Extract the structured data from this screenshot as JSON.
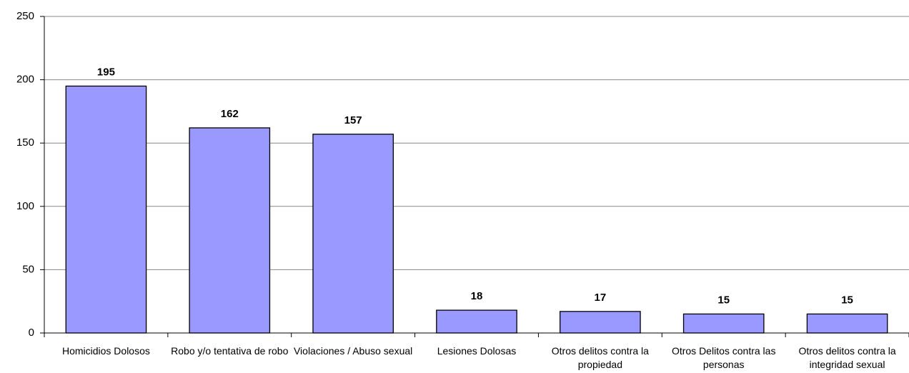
{
  "chart_data": {
    "type": "bar",
    "categories": [
      "Homicidios Dolosos",
      "Robo y/o tentativa de robo",
      "Violaciones / Abuso sexual",
      "Lesiones Dolosas",
      "Otros delitos contra la propiedad",
      "Otros Delitos contra las personas",
      "Otros delitos contra la integridad sexual"
    ],
    "values": [
      195,
      162,
      157,
      18,
      17,
      15,
      15
    ],
    "color": "#9999ff",
    "ylim": [
      0,
      250
    ],
    "yticks": [
      0,
      50,
      100,
      150,
      200,
      250
    ],
    "grid": true
  }
}
